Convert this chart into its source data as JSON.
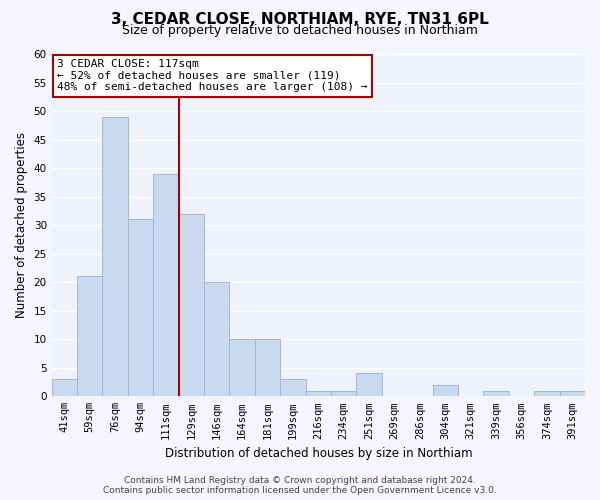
{
  "title": "3, CEDAR CLOSE, NORTHIAM, RYE, TN31 6PL",
  "subtitle": "Size of property relative to detached houses in Northiam",
  "xlabel": "Distribution of detached houses by size in Northiam",
  "ylabel": "Number of detached properties",
  "bar_labels": [
    "41sqm",
    "59sqm",
    "76sqm",
    "94sqm",
    "111sqm",
    "129sqm",
    "146sqm",
    "164sqm",
    "181sqm",
    "199sqm",
    "216sqm",
    "234sqm",
    "251sqm",
    "269sqm",
    "286sqm",
    "304sqm",
    "321sqm",
    "339sqm",
    "356sqm",
    "374sqm",
    "391sqm"
  ],
  "bar_values": [
    3,
    21,
    49,
    31,
    39,
    32,
    20,
    10,
    10,
    3,
    1,
    1,
    4,
    0,
    0,
    2,
    0,
    1,
    0,
    1,
    1
  ],
  "bar_color": "#c9d9f0",
  "bar_edge_color": "#a0b8d8",
  "vline_pos": 4.5,
  "vline_color": "#aa0000",
  "ylim": [
    0,
    60
  ],
  "yticks": [
    0,
    5,
    10,
    15,
    20,
    25,
    30,
    35,
    40,
    45,
    50,
    55,
    60
  ],
  "annotation_title": "3 CEDAR CLOSE: 117sqm",
  "annotation_line1": "← 52% of detached houses are smaller (119)",
  "annotation_line2": "48% of semi-detached houses are larger (108) →",
  "annotation_box_facecolor": "#ffffff",
  "annotation_box_edgecolor": "#aa0000",
  "footer_line1": "Contains HM Land Registry data © Crown copyright and database right 2024.",
  "footer_line2": "Contains public sector information licensed under the Open Government Licence v3.0.",
  "bg_color": "#eef2fa",
  "grid_color": "#ffffff",
  "title_fontsize": 11,
  "subtitle_fontsize": 9,
  "xlabel_fontsize": 8.5,
  "ylabel_fontsize": 8.5,
  "tick_fontsize": 7.5,
  "annot_fontsize": 8,
  "footer_fontsize": 6.5
}
